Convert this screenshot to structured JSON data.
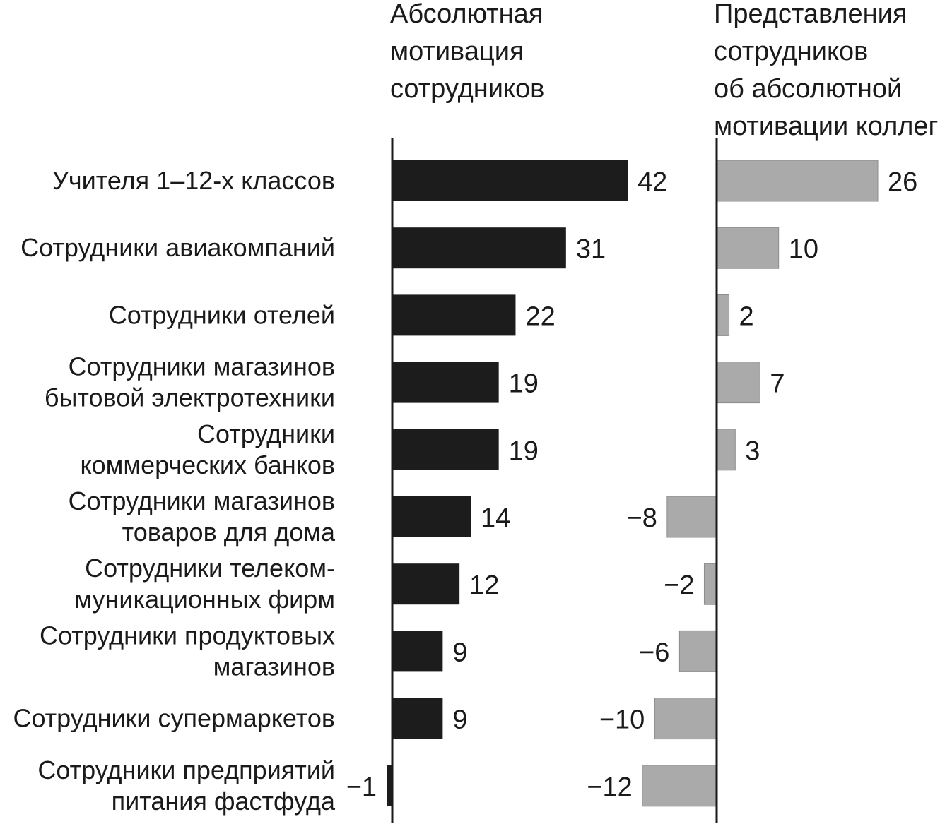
{
  "chart_data": [
    {
      "type": "bar",
      "orientation": "horizontal",
      "title": "Абсолютная мотивация сотрудников",
      "title_lines": [
        "Абсолютная",
        "мотивация",
        "сотрудников"
      ],
      "categories": [
        "Учителя 1–12-х классов",
        "Сотрудники авиакомпаний",
        "Сотрудники отелей",
        "Сотрудники магазинов бытовой электротехники",
        "Сотрудники коммерческих банков",
        "Сотрудники магазинов товаров для дома",
        "Сотрудники телекоммуникационных фирм",
        "Сотрудники продуктовых магазинов",
        "Сотрудники супермаркетов",
        "Сотрудники предприятий питания фастфуда"
      ],
      "values": [
        42,
        31,
        22,
        19,
        19,
        14,
        12,
        9,
        9,
        -1
      ],
      "value_labels": [
        "42",
        "31",
        "22",
        "19",
        "19",
        "14",
        "12",
        "9",
        "9",
        "−1"
      ],
      "color": "#1c1c1c",
      "grid": false
    },
    {
      "type": "bar",
      "orientation": "horizontal",
      "title": "Представления сотрудников об абсолютной мотивации коллег",
      "title_lines": [
        "Представления",
        "сотрудников",
        "об абсолютной",
        "мотивации коллег"
      ],
      "categories": [
        "Учителя 1–12-х классов",
        "Сотрудники авиакомпаний",
        "Сотрудники отелей",
        "Сотрудники магазинов бытовой электротехники",
        "Сотрудники коммерческих банков",
        "Сотрудники магазинов товаров для дома",
        "Сотрудники телекоммуникационных фирм",
        "Сотрудники продуктовых магазинов",
        "Сотрудники супермаркетов",
        "Сотрудники предприятий питания фастфуда"
      ],
      "values": [
        26,
        10,
        2,
        7,
        3,
        -8,
        -2,
        -6,
        -10,
        -12
      ],
      "value_labels": [
        "26",
        "10",
        "2",
        "7",
        "3",
        "−8",
        "−2",
        "−6",
        "−10",
        "−12"
      ],
      "color": "#aaaaaa",
      "grid": false
    }
  ],
  "category_label_lines": [
    [
      "Учителя 1–12-х классов"
    ],
    [
      "Сотрудники авиакомпаний"
    ],
    [
      "Сотрудники отелей"
    ],
    [
      "Сотрудники магазинов",
      "бытовой электротехники"
    ],
    [
      "Сотрудники",
      "коммерческих банков"
    ],
    [
      "Сотрудники магазинов",
      "товаров для дома"
    ],
    [
      "Сотрудники телеком-",
      "муникационных фирм"
    ],
    [
      "Сотрудники продуктовых",
      "магазинов"
    ],
    [
      "Сотрудники супермаркетов"
    ],
    [
      "Сотрудники предприятий",
      "питания фастфуда"
    ]
  ]
}
